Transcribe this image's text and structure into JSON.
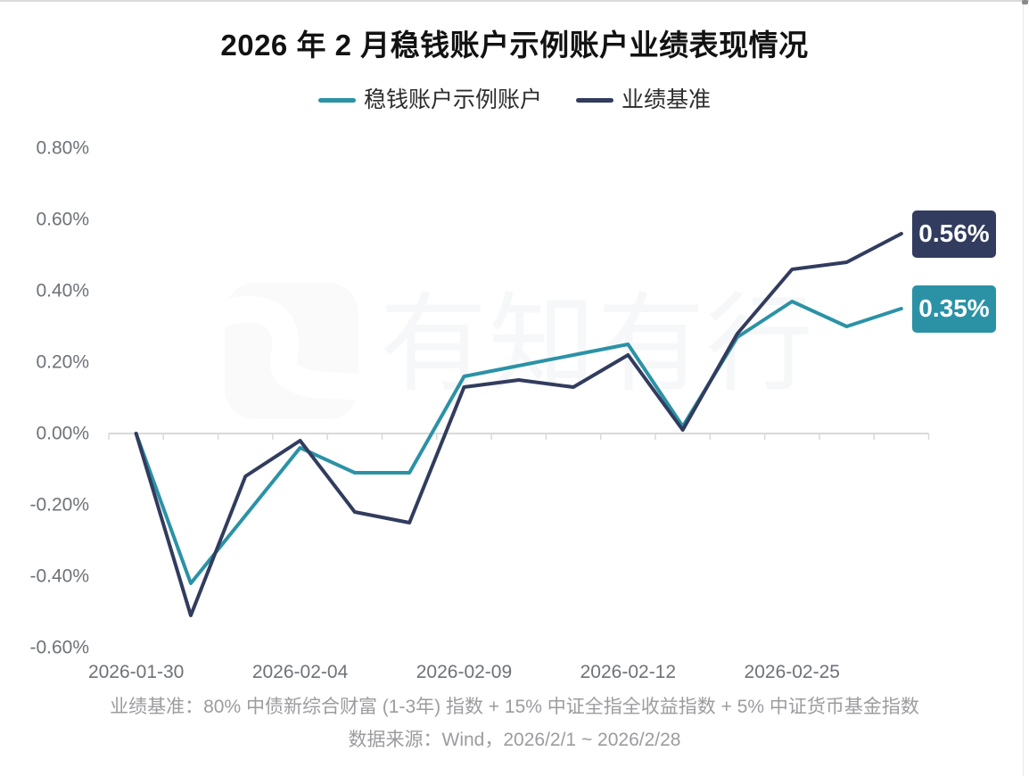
{
  "title": "2026 年 2 月稳钱账户示例账户业绩表现情况",
  "chart_data": {
    "type": "line",
    "title": "2026 年 2 月稳钱账户示例账户业绩表现情况",
    "legend_position": "top",
    "grid": "zero-axis-line-only",
    "point_count": 15,
    "x_tick_labels": [
      "2026-01-30",
      "2026-02-04",
      "2026-02-09",
      "2026-02-12",
      "2026-02-25"
    ],
    "x_tick_label_point_indices": [
      0,
      3,
      6,
      9,
      12
    ],
    "y_axis": {
      "unit": "%",
      "min": -0.6,
      "max": 0.8,
      "step": 0.2,
      "labels": [
        "0.80%",
        "0.60%",
        "0.40%",
        "0.20%",
        "0.00%",
        "-0.20%",
        "-0.40%",
        "-0.60%"
      ]
    },
    "series": [
      {
        "name": "稳钱账户示例账户",
        "color": "#2B92A6",
        "end_label": "0.35%",
        "values": [
          0.0,
          -0.42,
          -0.23,
          -0.04,
          -0.11,
          -0.11,
          0.16,
          0.19,
          0.22,
          0.25,
          0.02,
          0.27,
          0.37,
          0.3,
          0.35
        ]
      },
      {
        "name": "业绩基准",
        "color": "#313C5E",
        "end_label": "0.56%",
        "values": [
          0.0,
          -0.51,
          -0.12,
          -0.02,
          -0.22,
          -0.25,
          0.13,
          0.15,
          0.13,
          0.22,
          0.01,
          0.28,
          0.46,
          0.48,
          0.56
        ]
      }
    ]
  },
  "watermark": {
    "text": "有知有行",
    "logo": "youzhiyouxing-logo-icon"
  },
  "footnotes": [
    "业绩基准：80% 中债新综合财富 (1-3年) 指数 + 15% 中证全指全收益指数 + 5% 中证货币基金指数",
    "数据来源：Wind，2026/2/1 ~ 2026/2/28"
  ]
}
